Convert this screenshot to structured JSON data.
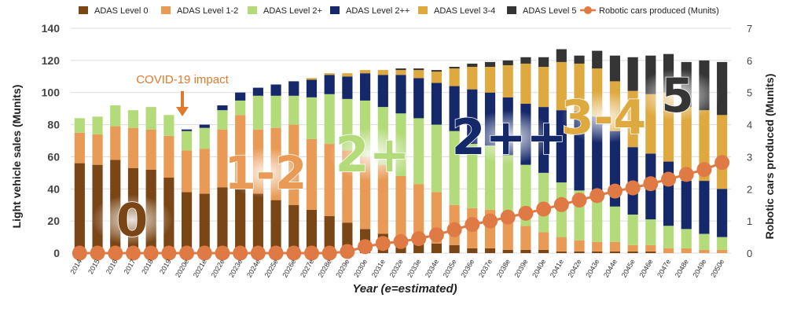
{
  "chart_data": {
    "type": "bar",
    "stacked": true,
    "xlabel": "Year (e=estimated)",
    "ylabel": "Light vehicle sales (Munits)",
    "y2label": "Robotic cars produced (Munits)",
    "ylim": [
      0,
      140
    ],
    "y2lim": [
      0,
      7
    ],
    "yticks": [
      "0",
      "20",
      "40",
      "60",
      "80",
      "100",
      "120",
      "140"
    ],
    "y2ticks": [
      "0",
      "1",
      "2",
      "3",
      "4",
      "5",
      "6",
      "7"
    ],
    "categories": [
      "2014",
      "2015",
      "2016",
      "2017",
      "2018",
      "2019",
      "2020e",
      "2021e",
      "2022e",
      "2023e",
      "2024e",
      "2025e",
      "2026e",
      "2027e",
      "2028e",
      "2029e",
      "2030e",
      "2031e",
      "2032e",
      "2033e",
      "2034e",
      "2035e",
      "2036e",
      "2037e",
      "2038e",
      "2039e",
      "2040e",
      "2041e",
      "2042e",
      "2043e",
      "2044e",
      "2045e",
      "2046e",
      "2047e",
      "2048e",
      "2049e",
      "2050e"
    ],
    "colors": {
      "ADAS Level 0": "#7B4616",
      "ADAS Level 1-2": "#E99A54",
      "ADAS Level 2+": "#B4DB7A",
      "ADAS Level 2++": "#15286A",
      "ADAS Level 3-4": "#DEA93F",
      "ADAS Level 5": "#353535",
      "Robotic cars produced (Munits)": "#E07A45"
    },
    "series": [
      {
        "name": "ADAS Level 0",
        "values": [
          56,
          55,
          58,
          53,
          52,
          47,
          38,
          37,
          41,
          43,
          37,
          33,
          30,
          27,
          23,
          19,
          15,
          12,
          9,
          7,
          6,
          5,
          3,
          3,
          2,
          2,
          2,
          1,
          1,
          1,
          1,
          1,
          1,
          0,
          0,
          0,
          0
        ]
      },
      {
        "name": "ADAS Level 1-2",
        "values": [
          19,
          19,
          21,
          25,
          25,
          26,
          26,
          28,
          36,
          43,
          40,
          45,
          50,
          44,
          45,
          45,
          45,
          43,
          39,
          36,
          32,
          25,
          25,
          24,
          20,
          15,
          11,
          9,
          7,
          6,
          6,
          4,
          4,
          3,
          3,
          2,
          2
        ]
      },
      {
        "name": "ADAS Level 2+",
        "values": [
          9,
          11,
          13,
          11,
          14,
          13,
          12,
          13,
          12,
          9,
          21,
          20,
          18,
          26,
          31,
          32,
          35,
          36,
          39,
          41,
          42,
          46,
          40,
          40,
          39,
          38,
          37,
          34,
          31,
          28,
          22,
          19,
          16,
          14,
          12,
          10,
          8
        ]
      },
      {
        "name": "ADAS Level 2++",
        "values": [
          0,
          0,
          0,
          0,
          0,
          0,
          1,
          2,
          3,
          5,
          5,
          7,
          9,
          11,
          12,
          14,
          17,
          20,
          24,
          25,
          26,
          28,
          34,
          33,
          36,
          38,
          41,
          45,
          49,
          50,
          47,
          42,
          41,
          40,
          30,
          33,
          30
        ]
      },
      {
        "name": "ADAS Level 3-4",
        "values": [
          0,
          0,
          0,
          0,
          0,
          0,
          0,
          0,
          0,
          0,
          0,
          0,
          0,
          1,
          1,
          2,
          2,
          3,
          3,
          5,
          7,
          11,
          14,
          16,
          20,
          25,
          25,
          30,
          30,
          30,
          31,
          35,
          37,
          43,
          46,
          44,
          46
        ]
      },
      {
        "name": "ADAS Level 5",
        "values": [
          0,
          0,
          0,
          0,
          0,
          0,
          0,
          0,
          0,
          0,
          0,
          0,
          0,
          0,
          0,
          0,
          0,
          0,
          1,
          1,
          1,
          1,
          2,
          3,
          3,
          4,
          6,
          8,
          5,
          11,
          16,
          21,
          24,
          24,
          28,
          31,
          33
        ]
      },
      {
        "name": "Robotic cars produced (Munits)",
        "type": "line",
        "axis": "right",
        "values": [
          0,
          0,
          0,
          0,
          0,
          0,
          0,
          0,
          0,
          0,
          0,
          0,
          0,
          0,
          0,
          0.05,
          0.2,
          0.3,
          0.36,
          0.45,
          0.57,
          0.73,
          0.89,
          1.0,
          1.12,
          1.24,
          1.37,
          1.51,
          1.65,
          1.79,
          1.93,
          2.03,
          2.16,
          2.3,
          2.45,
          2.6,
          2.82
        ]
      }
    ],
    "annotations": [
      {
        "text": "COVID-19 impact",
        "category": "2020e"
      },
      {
        "text": "0",
        "level": "ADAS Level 0"
      },
      {
        "text": "1-2",
        "level": "ADAS Level 1-2"
      },
      {
        "text": "2+",
        "level": "ADAS Level 2+"
      },
      {
        "text": "2++",
        "level": "ADAS Level 2++"
      },
      {
        "text": "3-4",
        "level": "ADAS Level 3-4"
      },
      {
        "text": "5",
        "level": "ADAS Level 5"
      }
    ]
  }
}
